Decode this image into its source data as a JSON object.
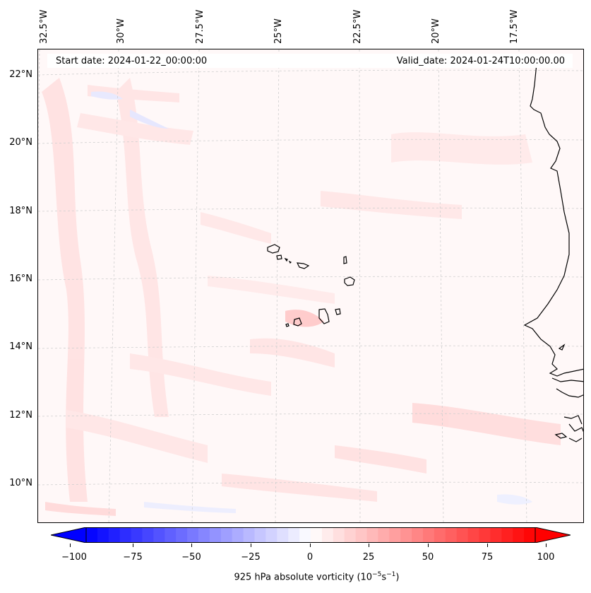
{
  "map": {
    "header": {
      "start_date": "Start date: 2024-01-22_00:00:00",
      "valid_date": "Valid_date: 2024-01-24T10:00:00.00"
    },
    "longitude_labels": [
      "32.5°W",
      "30°W",
      "27.5°W",
      "25°W",
      "22.5°W",
      "20°W",
      "17.5°W"
    ],
    "latitude_labels": [
      "22°N",
      "20°N",
      "18°N",
      "16°N",
      "14°N",
      "12°N",
      "10°N"
    ],
    "extent": {
      "lon_min": -33.0,
      "lon_max": -16.6,
      "lat_min": 8.9,
      "lat_max": 22.8
    },
    "field": "925 hPa absolute vorticity",
    "colors": {
      "min": "#0000ff",
      "mid": "#ffffff",
      "max": "#ff0000",
      "background": "#fff8f8"
    }
  },
  "colorbar": {
    "ticks": [
      "−100",
      "−75",
      "−50",
      "−25",
      "0",
      "25",
      "50",
      "75",
      "100"
    ],
    "tick_values": [
      -100,
      -75,
      -50,
      -25,
      0,
      25,
      50,
      75,
      100
    ],
    "range": [
      -100,
      100
    ],
    "caption_main": "925 hPa absolute vorticity (10",
    "caption_exp1": "−5",
    "caption_mid": "s",
    "caption_exp2": "−1",
    "caption_end": ")"
  }
}
